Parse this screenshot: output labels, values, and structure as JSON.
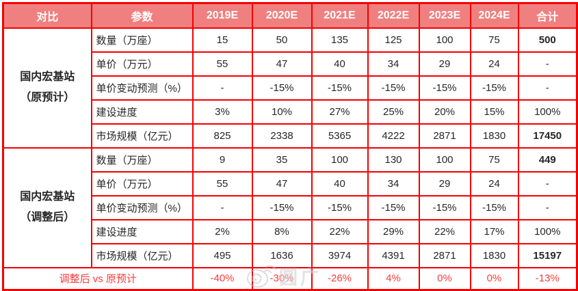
{
  "colors": {
    "border": "#f40000",
    "header_bg": "#f08080",
    "header_text": "#ffffff",
    "body_text": "#262626",
    "accent_red": "#f93b3b",
    "watermark": "#bcbcbc"
  },
  "table": {
    "header": [
      "对比",
      "参数",
      "2019E",
      "2020E",
      "2021E",
      "2022E",
      "2023E",
      "2024E",
      "合计"
    ],
    "sections": [
      {
        "group_line1": "国内宏基站",
        "group_line2": "（原预计）",
        "rows": [
          {
            "label": "数量（万座）",
            "values": [
              "15",
              "50",
              "135",
              "125",
              "100",
              "75",
              "500"
            ],
            "bold_total": true
          },
          {
            "label": "单价（万元）",
            "values": [
              "55",
              "47",
              "40",
              "34",
              "29",
              "24",
              "-"
            ],
            "bold_total": false
          },
          {
            "label": "单价变动预测（%）",
            "values": [
              "-",
              "-15%",
              "-15%",
              "-15%",
              "-15%",
              "-15%",
              "-"
            ],
            "bold_total": false
          },
          {
            "label": "建设进度",
            "values": [
              "3%",
              "10%",
              "27%",
              "25%",
              "20%",
              "15%",
              "100%"
            ],
            "bold_total": false
          },
          {
            "label": "市场规模（亿元）",
            "values": [
              "825",
              "2338",
              "5365",
              "4222",
              "2871",
              "1830",
              "17450"
            ],
            "bold_total": true
          }
        ]
      },
      {
        "group_line1": "国内宏基站",
        "group_line2": "（调整后）",
        "rows": [
          {
            "label": "数量（万座）",
            "values": [
              "9",
              "35",
              "100",
              "130",
              "100",
              "75",
              "449"
            ],
            "bold_total": true
          },
          {
            "label": "单价（万元）",
            "values": [
              "55",
              "47",
              "40",
              "34",
              "29",
              "24",
              "-"
            ],
            "bold_total": false
          },
          {
            "label": "单价变动预测（%）",
            "values": [
              "-",
              "-15%",
              "-15%",
              "-15%",
              "-15%",
              "-15%",
              "-"
            ],
            "bold_total": false
          },
          {
            "label": "建设进度",
            "values": [
              "2%",
              "8%",
              "22%",
              "29%",
              "22%",
              "17%",
              "100%"
            ],
            "bold_total": false
          },
          {
            "label": "市场规模（亿元）",
            "values": [
              "495",
              "1636",
              "3974",
              "4391",
              "2871",
              "1830",
              "15197"
            ],
            "bold_total": true
          }
        ]
      }
    ],
    "footer": {
      "label": "调整后 vs 原预计",
      "values": [
        "-40%",
        "-30%",
        "-26%",
        "4%",
        "0%",
        "0%",
        "-13%"
      ]
    }
  },
  "watermark": {
    "icon": "weibo-eye-icon",
    "text": "圆广"
  }
}
